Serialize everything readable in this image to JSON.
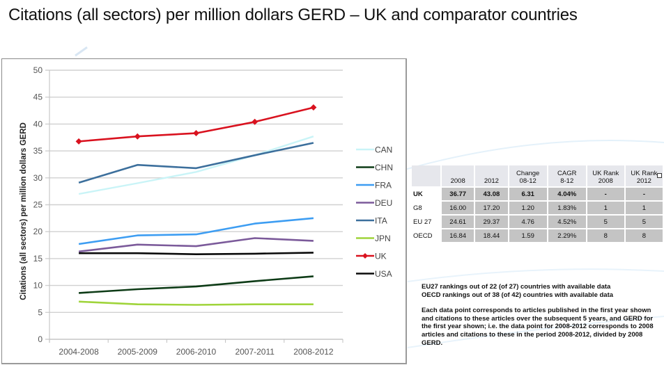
{
  "page": {
    "title": "Citations (all sectors) per million dollars GERD – UK and comparator countries"
  },
  "chart_data": {
    "type": "line",
    "title": "",
    "xlabel": "",
    "ylabel": "Citations (all sectors) per million dollars GERD",
    "ylim": [
      0,
      50
    ],
    "yticks": [
      0,
      5,
      10,
      15,
      20,
      25,
      30,
      35,
      40,
      45,
      50
    ],
    "grid": true,
    "legend_position": "right",
    "categories": [
      "2004-2008",
      "2005-2009",
      "2006-2010",
      "2007-2011",
      "2008-2012"
    ],
    "series": [
      {
        "name": "CAN",
        "color": "#c9f4f7",
        "marker": "none",
        "values": [
          27.0,
          29.0,
          31.1,
          34.2,
          37.7
        ]
      },
      {
        "name": "CHN",
        "color": "#0d3b16",
        "marker": "none",
        "values": [
          8.6,
          9.3,
          9.8,
          10.8,
          11.7
        ]
      },
      {
        "name": "FRA",
        "color": "#3d9df2",
        "marker": "none",
        "values": [
          17.7,
          19.3,
          19.5,
          21.5,
          22.5
        ]
      },
      {
        "name": "DEU",
        "color": "#7b5a9a",
        "marker": "none",
        "values": [
          16.3,
          17.6,
          17.3,
          18.8,
          18.3
        ]
      },
      {
        "name": "ITA",
        "color": "#3c6f9c",
        "marker": "none",
        "values": [
          29.1,
          32.4,
          31.8,
          34.2,
          36.5
        ]
      },
      {
        "name": "JPN",
        "color": "#9fd43a",
        "marker": "none",
        "values": [
          7.0,
          6.5,
          6.4,
          6.5,
          6.5
        ]
      },
      {
        "name": "UK",
        "color": "#d9121f",
        "marker": "diamond",
        "values": [
          36.77,
          37.7,
          38.3,
          40.4,
          43.08
        ]
      },
      {
        "name": "USA",
        "color": "#0a0a0a",
        "marker": "none",
        "values": [
          16.0,
          16.0,
          15.8,
          15.9,
          16.1
        ]
      }
    ]
  },
  "table": {
    "headers": [
      "",
      "2008",
      "2012",
      "Change\n08-12",
      "CAGR\n8-12",
      "UK Rank\n2008",
      "UK Rank\n2012"
    ],
    "header_lines": [
      [
        "",
        ""
      ],
      [
        "",
        "2008"
      ],
      [
        "",
        "2012"
      ],
      [
        "Change",
        "08-12"
      ],
      [
        "CAGR",
        "8-12"
      ],
      [
        "UK Rank",
        "2008"
      ],
      [
        "UK Rank",
        "2012"
      ]
    ],
    "rows": [
      {
        "label": "UK",
        "values": [
          "36.77",
          "43.08",
          "6.31",
          "4.04%",
          "-",
          "-"
        ]
      },
      {
        "label": "G8",
        "values": [
          "16.00",
          "17.20",
          "1.20",
          "1.83%",
          "1",
          "1"
        ]
      },
      {
        "label": "EU 27",
        "values": [
          "24.61",
          "29.37",
          "4.76",
          "4.52%",
          "5",
          "5"
        ]
      },
      {
        "label": "OECD",
        "values": [
          "16.84",
          "18.44",
          "1.59",
          "2.29%",
          "8",
          "8"
        ]
      }
    ]
  },
  "notes": {
    "rankings": [
      "EU27 rankings out of 22 (of 27) countries with available data",
      "OECD rankings out of 38 (of 42) countries with available data"
    ],
    "explanation": "Each data point corresponds to articles published in the first year shown and citations to these articles over the subsequent 5 years, and GERD for the first year shown; i.e. the data point for 2008-2012 corresponds to 2008 articles and citations to these in the period 2008-2012, divided by 2008 GERD."
  }
}
